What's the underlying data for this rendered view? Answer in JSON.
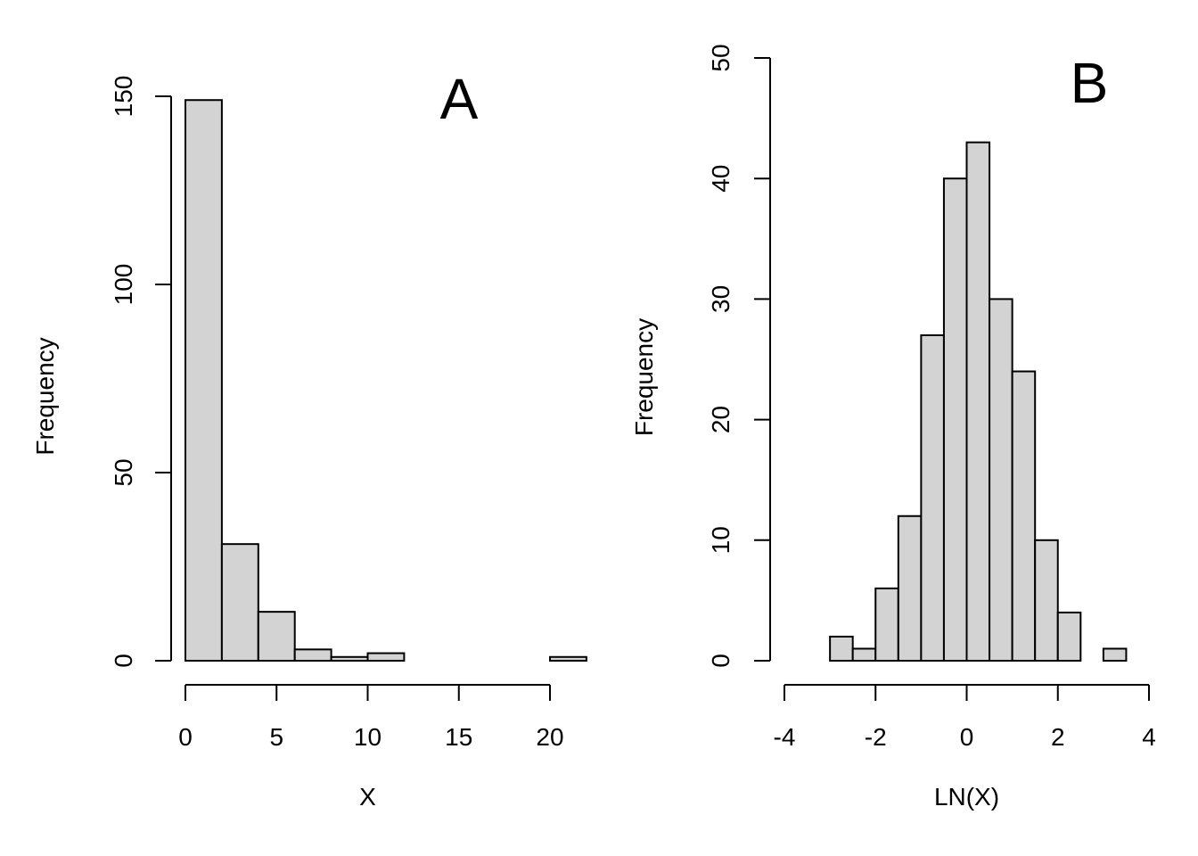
{
  "chart_data": [
    {
      "type": "bar",
      "panel_label": "A",
      "xlabel": "X",
      "ylabel": "Frequency",
      "bin_edges": [
        0,
        2,
        4,
        6,
        8,
        10,
        12,
        14,
        16,
        18,
        20,
        22
      ],
      "values": [
        149,
        31,
        13,
        3,
        1,
        2,
        0,
        0,
        0,
        0,
        1
      ],
      "xlim": [
        0,
        20
      ],
      "ylim": [
        0,
        150
      ],
      "x_ticks": [
        0,
        5,
        10,
        15,
        20
      ],
      "y_ticks": [
        0,
        50,
        100,
        150
      ],
      "grid": false,
      "bar_color": "#d3d3d3"
    },
    {
      "type": "bar",
      "panel_label": "B",
      "xlabel": "LN(X)",
      "ylabel": "Frequency",
      "bin_edges": [
        -3,
        -2.5,
        -2,
        -1.5,
        -1,
        -0.5,
        0,
        0.5,
        1,
        1.5,
        2,
        2.5,
        3,
        3.5
      ],
      "values": [
        2,
        1,
        6,
        12,
        27,
        40,
        43,
        30,
        24,
        10,
        4,
        0,
        1
      ],
      "xlim": [
        -4,
        4
      ],
      "ylim": [
        0,
        50
      ],
      "x_ticks": [
        -4,
        -2,
        0,
        2,
        4
      ],
      "y_ticks": [
        0,
        10,
        20,
        30,
        40,
        50
      ],
      "grid": false,
      "bar_color": "#d3d3d3"
    }
  ]
}
